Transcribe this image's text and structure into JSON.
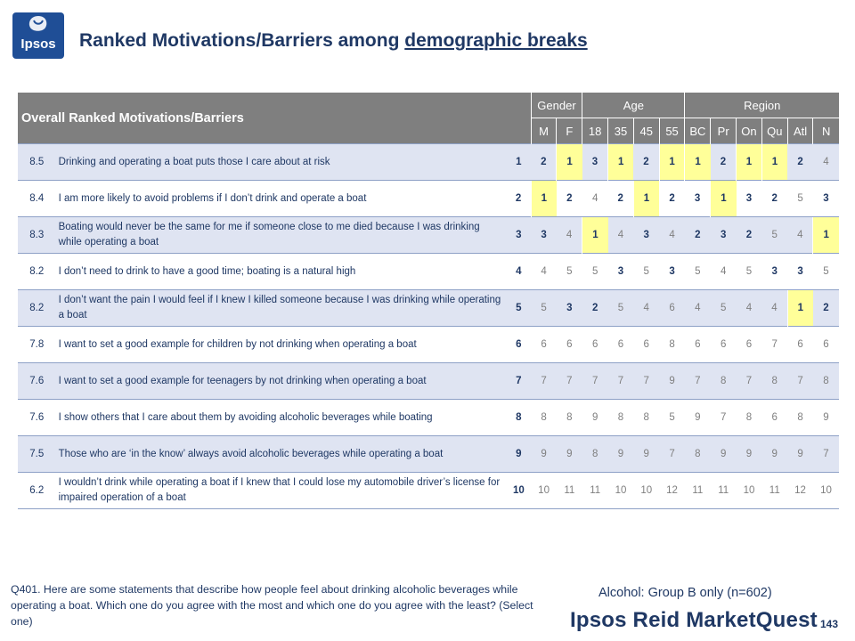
{
  "header": {
    "logo_text": "Ipsos",
    "title_part1": "Ranked Motivations/Barriers among ",
    "title_part2": "demographic breaks"
  },
  "table": {
    "main_header": "Overall Ranked Motivations/Barriers",
    "groups": [
      {
        "label": "Gender",
        "span": 2
      },
      {
        "label": "Age",
        "span": 4
      },
      {
        "label": "Region",
        "span": 6
      }
    ],
    "columns": [
      "M",
      "F",
      "18",
      "35",
      "45",
      "55",
      "BC",
      "Pr",
      "On",
      "Qu",
      "Atl",
      "N"
    ],
    "rows": [
      {
        "score": "8.5",
        "statement": "Drinking and operating a boat puts those I care about at risk",
        "overall": "1",
        "cells": [
          "2",
          "1",
          "3",
          "1",
          "2",
          "1",
          "1",
          "2",
          "1",
          "1",
          "2",
          "4"
        ],
        "styles": [
          "b",
          "hl",
          "b",
          "hl",
          "b",
          "hl",
          "hl",
          "b",
          "hl",
          "hl",
          "b",
          ""
        ]
      },
      {
        "score": "8.4",
        "statement": "I am more likely to avoid problems if I don’t drink and operate a boat",
        "overall": "2",
        "cells": [
          "1",
          "2",
          "4",
          "2",
          "1",
          "2",
          "3",
          "1",
          "3",
          "2",
          "5",
          "3"
        ],
        "styles": [
          "hl",
          "b",
          "",
          "b",
          "hl",
          "b",
          "b",
          "hl",
          "b",
          "b",
          "",
          "b"
        ]
      },
      {
        "score": "8.3",
        "statement": "Boating would never be the same for me if someone close to me died because I was drinking while operating a boat",
        "overall": "3",
        "cells": [
          "3",
          "4",
          "1",
          "4",
          "3",
          "4",
          "2",
          "3",
          "2",
          "5",
          "4",
          "1"
        ],
        "styles": [
          "b",
          "",
          "hl",
          "",
          "b",
          "",
          "b",
          "b",
          "b",
          "",
          "",
          "hl"
        ]
      },
      {
        "score": "8.2",
        "statement": "I don’t need to drink to have a good time; boating is a natural high",
        "overall": "4",
        "cells": [
          "4",
          "5",
          "5",
          "3",
          "5",
          "3",
          "5",
          "4",
          "5",
          "3",
          "3",
          "5"
        ],
        "styles": [
          "",
          "",
          "",
          "b",
          "",
          "b",
          "",
          "",
          "",
          "b",
          "b",
          ""
        ]
      },
      {
        "score": "8.2",
        "statement": "I don’t want the pain I would feel if I knew I killed someone because I was drinking while operating a boat",
        "overall": "5",
        "cells": [
          "5",
          "3",
          "2",
          "5",
          "4",
          "6",
          "4",
          "5",
          "4",
          "4",
          "1",
          "2"
        ],
        "styles": [
          "",
          "b",
          "b",
          "",
          "",
          "",
          "",
          "",
          "",
          "",
          "hl",
          "b"
        ]
      },
      {
        "score": "7.8",
        "statement": "I want to set a good example for children by not drinking when operating a boat",
        "overall": "6",
        "cells": [
          "6",
          "6",
          "6",
          "6",
          "6",
          "8",
          "6",
          "6",
          "6",
          "7",
          "6",
          "6"
        ],
        "styles": [
          "",
          "",
          "",
          "",
          "",
          "",
          "",
          "",
          "",
          "",
          "",
          ""
        ]
      },
      {
        "score": "7.6",
        "statement": "I want to set a good example for teenagers by not drinking when operating a boat",
        "overall": "7",
        "cells": [
          "7",
          "7",
          "7",
          "7",
          "7",
          "9",
          "7",
          "8",
          "7",
          "8",
          "7",
          "8"
        ],
        "styles": [
          "",
          "",
          "",
          "",
          "",
          "",
          "",
          "",
          "",
          "",
          "",
          ""
        ]
      },
      {
        "score": "7.6",
        "statement": "I show others that I care about them by avoiding alcoholic beverages while boating",
        "overall": "8",
        "cells": [
          "8",
          "8",
          "9",
          "8",
          "8",
          "5",
          "9",
          "7",
          "8",
          "6",
          "8",
          "9"
        ],
        "styles": [
          "",
          "",
          "",
          "",
          "",
          "",
          "",
          "",
          "",
          "",
          "",
          ""
        ]
      },
      {
        "score": "7.5",
        "statement": "Those who are ‘in the know’ always avoid alcoholic beverages while operating a boat",
        "overall": "9",
        "cells": [
          "9",
          "9",
          "8",
          "9",
          "9",
          "7",
          "8",
          "9",
          "9",
          "9",
          "9",
          "7"
        ],
        "styles": [
          "",
          "",
          "",
          "",
          "",
          "",
          "",
          "",
          "",
          "",
          "",
          ""
        ]
      },
      {
        "score": "6.2",
        "statement": "I wouldn’t drink while operating a boat if I knew that I could lose my automobile driver’s license for impaired operation of a boat",
        "overall": "10",
        "cells": [
          "10",
          "11",
          "11",
          "10",
          "10",
          "12",
          "11",
          "11",
          "10",
          "11",
          "12",
          "10"
        ],
        "styles": [
          "",
          "",
          "",
          "",
          "",
          "",
          "",
          "",
          "",
          "",
          "",
          ""
        ]
      }
    ]
  },
  "footer": {
    "question": "Q401. Here are some statements that describe how people feel about drinking alcoholic beverages while operating a boat.  Which one do you agree with the most and which one do you agree with the least?   (Select one)",
    "base": "Alcohol: Group B only (n=602)",
    "brand": "Ipsos Reid MarketQuest",
    "page_number": "143"
  },
  "colors": {
    "navy": "#1f3864",
    "header_gray": "#7f7f7f",
    "row_band": "#dfe4f2",
    "highlight": "#ffff99",
    "logo_blue": "#1f4e96"
  }
}
